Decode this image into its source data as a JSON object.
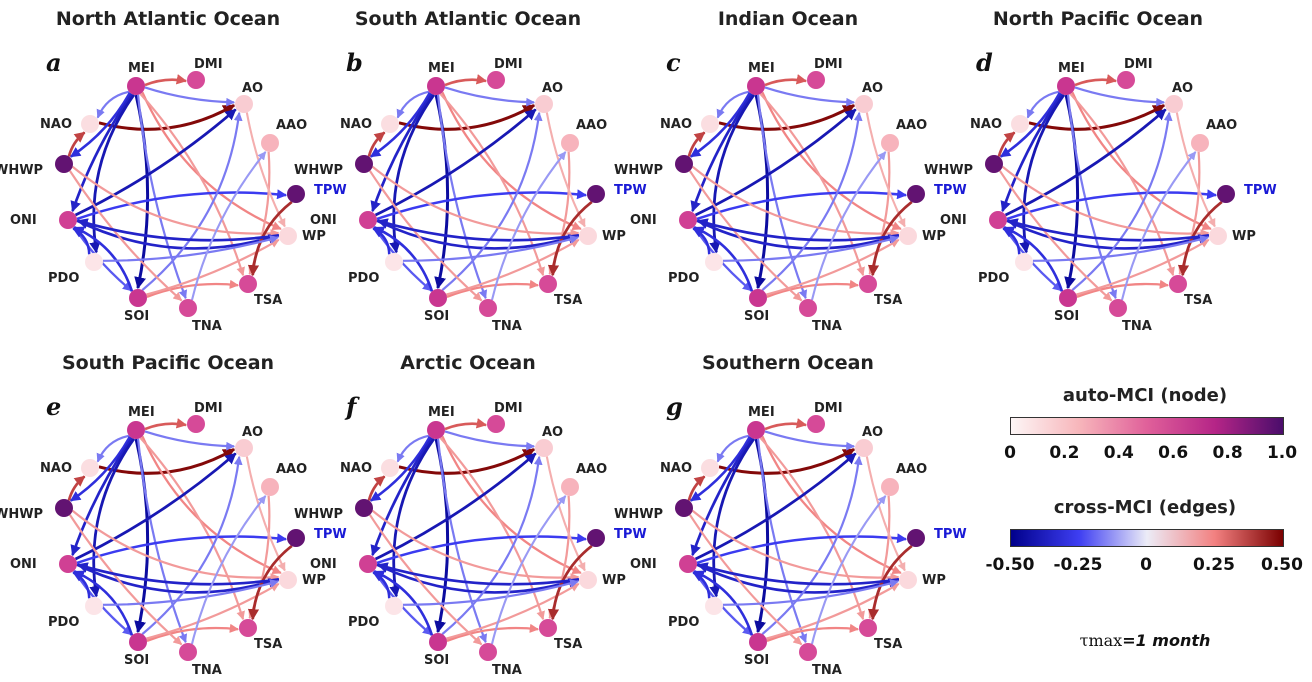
{
  "panels": [
    {
      "letter": "a",
      "title": "North Atlantic Ocean"
    },
    {
      "letter": "b",
      "title": "South Atlantic Ocean"
    },
    {
      "letter": "c",
      "title": "Indian Ocean"
    },
    {
      "letter": "d",
      "title": "North Pacific Ocean"
    },
    {
      "letter": "e",
      "title": "South Pacific Ocean"
    },
    {
      "letter": "f",
      "title": "Arctic Ocean"
    },
    {
      "letter": "g",
      "title": "Southern Ocean"
    }
  ],
  "nodes": [
    {
      "id": "MEI",
      "label": "MEI",
      "auto": 0.7
    },
    {
      "id": "DMI",
      "label": "DMI",
      "auto": 0.6
    },
    {
      "id": "AO",
      "label": "AO",
      "auto": 0.15
    },
    {
      "id": "AAO",
      "label": "AAO",
      "auto": 0.25
    },
    {
      "id": "TPW",
      "label": "TPW",
      "auto": 0.95
    },
    {
      "id": "WP",
      "label": "WP",
      "auto": 0.1
    },
    {
      "id": "TSA",
      "label": "TSA",
      "auto": 0.6
    },
    {
      "id": "TNA",
      "label": "TNA",
      "auto": 0.6
    },
    {
      "id": "SOI",
      "label": "SOI",
      "auto": 0.7
    },
    {
      "id": "PDO",
      "label": "PDO",
      "auto": 0.05
    },
    {
      "id": "ONI",
      "label": "ONI",
      "auto": 0.65
    },
    {
      "id": "WHWP",
      "label": "WHWP",
      "auto": 0.95
    },
    {
      "id": "NAO",
      "label": "NAO",
      "auto": 0.08
    }
  ],
  "edges": [
    {
      "from": "NAO",
      "to": "AO",
      "w": 0.48
    },
    {
      "from": "MEI",
      "to": "DMI",
      "w": 0.3
    },
    {
      "from": "MEI",
      "to": "AO",
      "w": -0.15
    },
    {
      "from": "MEI",
      "to": "NAO",
      "w": -0.15
    },
    {
      "from": "MEI",
      "to": "WHWP",
      "w": -0.3
    },
    {
      "from": "MEI",
      "to": "ONI",
      "w": -0.35
    },
    {
      "from": "MEI",
      "to": "PDO",
      "w": -0.4
    },
    {
      "from": "MEI",
      "to": "SOI",
      "w": -0.45
    },
    {
      "from": "MEI",
      "to": "TNA",
      "w": -0.15
    },
    {
      "from": "MEI",
      "to": "WP",
      "w": 0.2
    },
    {
      "from": "MEI",
      "to": "TSA",
      "w": 0.15
    },
    {
      "from": "ONI",
      "to": "AO",
      "w": -0.4
    },
    {
      "from": "ONI",
      "to": "WP",
      "w": -0.35
    },
    {
      "from": "ONI",
      "to": "TPW",
      "w": -0.25
    },
    {
      "from": "ONI",
      "to": "SOI",
      "w": -0.2
    },
    {
      "from": "SOI",
      "to": "ONI",
      "w": -0.3
    },
    {
      "from": "SOI",
      "to": "TSA",
      "w": 0.2
    },
    {
      "from": "SOI",
      "to": "WP",
      "w": 0.15
    },
    {
      "from": "SOI",
      "to": "AO",
      "w": -0.15
    },
    {
      "from": "WHWP",
      "to": "NAO",
      "w": 0.35
    },
    {
      "from": "WHWP",
      "to": "TNA",
      "w": 0.15
    },
    {
      "from": "WHWP",
      "to": "WP",
      "w": 0.15
    },
    {
      "from": "AAO",
      "to": "TSA",
      "w": 0.15
    },
    {
      "from": "AO",
      "to": "WP",
      "w": 0.1
    },
    {
      "from": "TPW",
      "to": "TSA",
      "w": 0.4
    },
    {
      "from": "WP",
      "to": "ONI",
      "w": -0.35
    },
    {
      "from": "PDO",
      "to": "WP",
      "w": -0.15
    },
    {
      "from": "PDO",
      "to": "ONI",
      "w": -0.3
    },
    {
      "from": "TNA",
      "to": "AAO",
      "w": -0.1
    }
  ],
  "legend": {
    "node_title": "auto-MCI (node)",
    "node_ticks": [
      "0",
      "0.2",
      "0.4",
      "0.6",
      "0.8",
      "1.0"
    ],
    "edge_title": "cross-MCI (edges)",
    "edge_ticks": [
      "-0.50",
      "-0.25",
      "0",
      "0.25",
      "0.50"
    ],
    "tau_symbol": "τmax",
    "tau_value": "=1 month"
  },
  "colors": {
    "node_low": "#fbe9ea",
    "node_high": "#4a0d6b",
    "edge_neg": "#00008b",
    "edge_zero": "#f5f5f5",
    "edge_pos": "#7a0000"
  }
}
